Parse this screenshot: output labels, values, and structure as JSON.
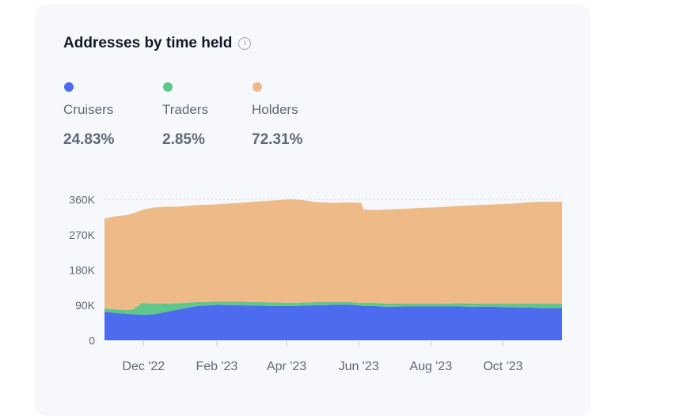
{
  "card": {
    "title": "Addresses by time held",
    "info_icon": "info-icon"
  },
  "legend": [
    {
      "label": "Cruisers",
      "value": "24.83%",
      "color": "#4d6bef"
    },
    {
      "label": "Traders",
      "value": "2.85%",
      "color": "#5ec78b"
    },
    {
      "label": "Holders",
      "value": "72.31%",
      "color": "#edba88"
    }
  ],
  "chart_data": {
    "type": "area",
    "stacked": true,
    "title": "Addresses by time held",
    "xlabel": "",
    "ylabel": "",
    "ylim": [
      0,
      360000
    ],
    "y_ticks": [
      {
        "value": 0,
        "label": "0"
      },
      {
        "value": 90000,
        "label": "90K"
      },
      {
        "value": 180000,
        "label": "180K"
      },
      {
        "value": 270000,
        "label": "270K"
      },
      {
        "value": 360000,
        "label": "360K"
      }
    ],
    "x_range": [
      "2022-10-29",
      "2023-11-20"
    ],
    "x_ticks": [
      {
        "date": "2022-12-01",
        "label": "Dec '22"
      },
      {
        "date": "2023-02-01",
        "label": "Feb '23"
      },
      {
        "date": "2023-04-01",
        "label": "Apr '23"
      },
      {
        "date": "2023-06-01",
        "label": "Jun '23"
      },
      {
        "date": "2023-08-01",
        "label": "Aug '23"
      },
      {
        "date": "2023-10-01",
        "label": "Oct '23"
      }
    ],
    "x": [
      "2022-10-29",
      "2022-11-08",
      "2022-11-18",
      "2022-11-22",
      "2022-11-30",
      "2022-12-10",
      "2022-12-20",
      "2022-12-30",
      "2023-01-15",
      "2023-02-01",
      "2023-02-20",
      "2023-03-10",
      "2023-03-25",
      "2023-04-05",
      "2023-04-15",
      "2023-04-25",
      "2023-05-10",
      "2023-05-25",
      "2023-06-03",
      "2023-06-05",
      "2023-06-15",
      "2023-06-25",
      "2023-07-10",
      "2023-07-25",
      "2023-08-10",
      "2023-08-25",
      "2023-09-10",
      "2023-09-25",
      "2023-10-10",
      "2023-10-25",
      "2023-11-10",
      "2023-11-20"
    ],
    "series": [
      {
        "name": "Cruisers",
        "color": "#4d6bef",
        "values": [
          73000,
          69000,
          67000,
          66000,
          65000,
          66000,
          72000,
          78000,
          87000,
          90000,
          89000,
          88000,
          87000,
          87000,
          88000,
          89000,
          90000,
          90000,
          88000,
          87000,
          87000,
          85000,
          86000,
          86000,
          86000,
          86000,
          85000,
          85000,
          84000,
          83000,
          82000,
          82000
        ]
      },
      {
        "name": "Traders",
        "color": "#5ec78b",
        "values": [
          8000,
          9000,
          10000,
          12000,
          30000,
          27000,
          21000,
          16000,
          10000,
          8000,
          9000,
          9000,
          9000,
          8000,
          8000,
          8000,
          7000,
          7000,
          7000,
          8000,
          8000,
          8000,
          7000,
          7000,
          7000,
          8000,
          8000,
          8000,
          9000,
          10000,
          11000,
          11000
        ]
      },
      {
        "name": "Holders",
        "color": "#edba88",
        "values": [
          230000,
          239000,
          243000,
          246000,
          238000,
          246000,
          248000,
          247000,
          248000,
          249000,
          253000,
          258000,
          262000,
          265000,
          262000,
          256000,
          254000,
          255000,
          256000,
          239000,
          238000,
          241000,
          243000,
          245000,
          247000,
          249000,
          252000,
          254000,
          256000,
          260000,
          261000,
          261000
        ]
      }
    ]
  }
}
